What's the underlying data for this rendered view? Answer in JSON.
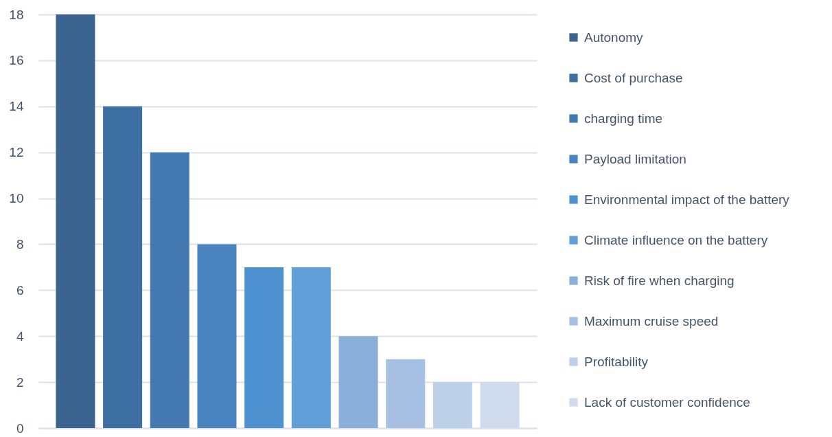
{
  "chart_data": {
    "type": "bar",
    "categories": [
      null
    ],
    "series": [
      {
        "name": "Autonomy",
        "color": "#3b6590",
        "values": [
          18
        ]
      },
      {
        "name": "Cost of purchase",
        "color": "#3e6fa2",
        "values": [
          14
        ]
      },
      {
        "name": "charging time",
        "color": "#4479b1",
        "values": [
          12
        ]
      },
      {
        "name": "Payload limitation",
        "color": "#4a84c0",
        "values": [
          8
        ]
      },
      {
        "name": "Environmental impact of the battery",
        "color": "#4e91d0",
        "values": [
          7
        ]
      },
      {
        "name": "Climate influence on the battery",
        "color": "#619fd9",
        "values": [
          7
        ]
      },
      {
        "name": "Risk of fire when charging",
        "color": "#8cafd9",
        "values": [
          4
        ]
      },
      {
        "name": "Maximum cruise speed",
        "color": "#a5c0e2",
        "values": [
          3
        ]
      },
      {
        "name": "Profitability",
        "color": "#bdd0ea",
        "values": [
          2
        ]
      },
      {
        "name": "Lack of customer confidence",
        "color": "#d0dcee",
        "values": [
          2
        ]
      }
    ],
    "ylim": [
      0,
      18
    ],
    "yticks": [
      0,
      2,
      4,
      6,
      8,
      10,
      12,
      14,
      16,
      18
    ],
    "grid": "y",
    "legend": "right",
    "tick_labels": "y"
  }
}
